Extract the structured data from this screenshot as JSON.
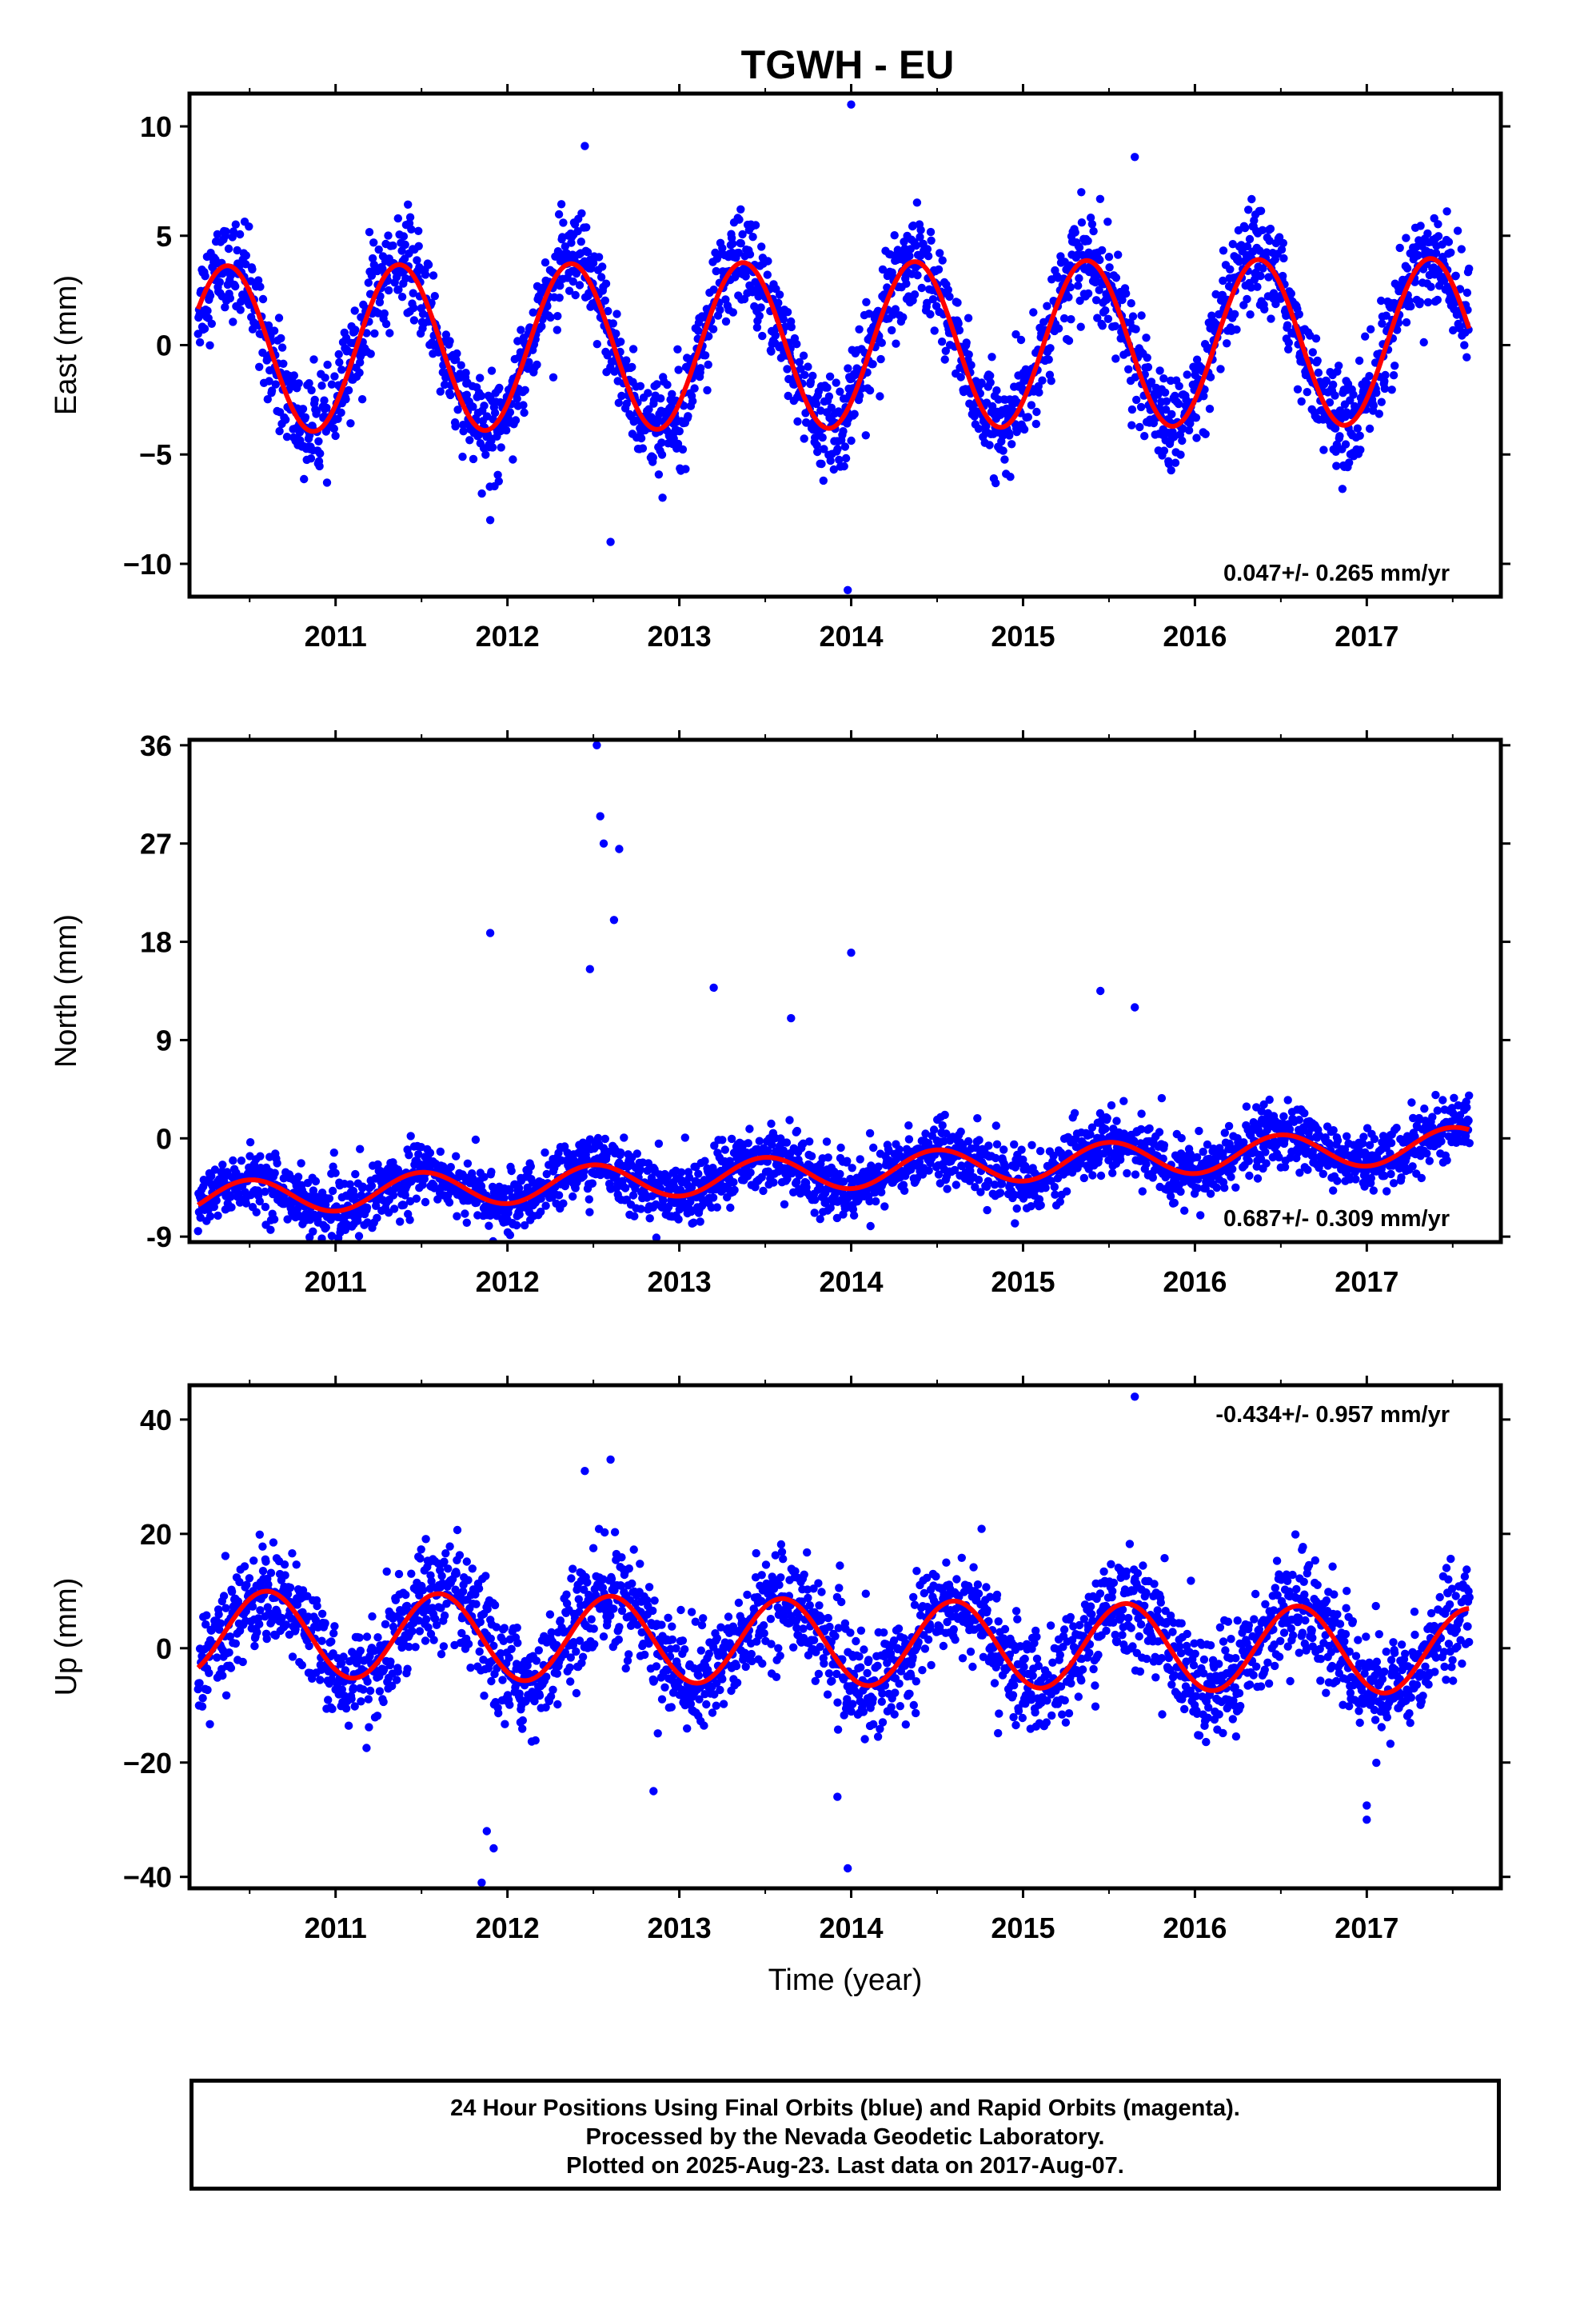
{
  "title": "TGWH - EU",
  "x_axis_label": "Time (year)",
  "caption": {
    "line1": "24 Hour Positions Using Final Orbits (blue) and Rapid Orbits (magenta).",
    "line2": "Processed by the Nevada Geodetic Laboratory.",
    "line3": "Plotted on 2025-Aug-23. Last data on 2017-Aug-07."
  },
  "colors": {
    "points": "#0000ff",
    "fit": "#ff0000",
    "axes": "#000000",
    "background": "#ffffff"
  },
  "chart_data": [
    {
      "type": "scatter",
      "ylabel": "East (mm)",
      "rate_text": "0.047+/- 0.265 mm/yr",
      "rate_position": "bottom-right",
      "xlim": [
        2010.15,
        2017.78
      ],
      "ylim": [
        -11.5,
        11.5
      ],
      "yticks": [
        -10,
        -5,
        0,
        5,
        10
      ],
      "ytick_labels": [
        "−10",
        "−5",
        "0",
        "5",
        "10"
      ],
      "xticks": [
        2011,
        2012,
        2013,
        2014,
        2015,
        2016,
        2017
      ],
      "xtick_labels": [
        "2011",
        "2012",
        "2013",
        "2014",
        "2015",
        "2016",
        "2017"
      ],
      "data_range": [
        2010.2,
        2017.6
      ],
      "series": [
        {
          "kind": "points",
          "model": {
            "offset": 0.0,
            "trend": 0.047,
            "annual_amp": 3.8,
            "annual_phase_peak": 0.37,
            "scatter_sd": 1.1
          },
          "outliers": [
            [
              2014.0,
              11.0
            ],
            [
              2013.98,
              -11.2
            ],
            [
              2012.6,
              -9.0
            ],
            [
              2015.65,
              8.6
            ],
            [
              2012.45,
              9.1
            ],
            [
              2011.9,
              -8.0
            ]
          ]
        },
        {
          "kind": "fit",
          "model": {
            "offset": 0.0,
            "trend": 0.047,
            "annual_amp": 3.8,
            "annual_phase_peak": 0.37
          }
        }
      ]
    },
    {
      "type": "scatter",
      "ylabel": "North (mm)",
      "rate_text": "0.687+/- 0.309 mm/yr",
      "rate_position": "bottom-right",
      "xlim": [
        2010.15,
        2017.78
      ],
      "ylim": [
        -9.5,
        36.5
      ],
      "yticks": [
        -9,
        0,
        9,
        18,
        27,
        36
      ],
      "ytick_labels": [
        "-9",
        "0",
        "9",
        "18",
        "27",
        "36"
      ],
      "xticks": [
        2011,
        2012,
        2013,
        2014,
        2015,
        2016,
        2017
      ],
      "xtick_labels": [
        "2011",
        "2012",
        "2013",
        "2014",
        "2015",
        "2016",
        "2017"
      ],
      "data_range": [
        2010.2,
        2017.6
      ],
      "series": [
        {
          "kind": "points",
          "model": {
            "offset": -3.0,
            "trend": 0.687,
            "annual_amp": 1.6,
            "annual_phase_peak": 0.5,
            "scatter_sd": 1.4
          },
          "outliers": [
            [
              2012.52,
              36.0
            ],
            [
              2012.54,
              29.5
            ],
            [
              2012.56,
              27.0
            ],
            [
              2012.62,
              20.0
            ],
            [
              2012.65,
              26.5
            ],
            [
              2011.9,
              18.8
            ],
            [
              2014.0,
              17.0
            ],
            [
              2012.48,
              15.5
            ],
            [
              2015.45,
              13.5
            ],
            [
              2013.2,
              13.8
            ],
            [
              2013.65,
              11.0
            ],
            [
              2015.65,
              12.0
            ]
          ]
        },
        {
          "kind": "fit",
          "model": {
            "offset": -3.0,
            "trend": 0.687,
            "annual_amp": 1.6,
            "annual_phase_peak": 0.5
          }
        }
      ]
    },
    {
      "type": "scatter",
      "ylabel": "Up (mm)",
      "rate_text": "-0.434+/- 0.957 mm/yr",
      "rate_position": "top-right",
      "xlim": [
        2010.15,
        2017.78
      ],
      "ylim": [
        -42,
        46
      ],
      "yticks": [
        -40,
        -20,
        0,
        20,
        40
      ],
      "ytick_labels": [
        "−40",
        "−20",
        "0",
        "20",
        "40"
      ],
      "xticks": [
        2011,
        2012,
        2013,
        2014,
        2015,
        2016,
        2017
      ],
      "xtick_labels": [
        "2011",
        "2012",
        "2013",
        "2014",
        "2015",
        "2016",
        "2017"
      ],
      "data_range": [
        2010.2,
        2017.6
      ],
      "series": [
        {
          "kind": "points",
          "model": {
            "offset": 1.0,
            "trend": -0.434,
            "annual_amp": 7.5,
            "annual_phase_peak": 0.6,
            "scatter_sd": 4.5
          },
          "outliers": [
            [
              2015.65,
              44.0
            ],
            [
              2011.85,
              -41.0
            ],
            [
              2011.88,
              -32.0
            ],
            [
              2011.92,
              -35.0
            ],
            [
              2013.98,
              -38.5
            ],
            [
              2013.92,
              -26.0
            ],
            [
              2012.6,
              33.0
            ],
            [
              2012.45,
              31.0
            ],
            [
              2017.0,
              -30.0
            ],
            [
              2017.0,
              -27.5
            ],
            [
              2012.85,
              -25.0
            ]
          ]
        },
        {
          "kind": "fit",
          "model": {
            "offset": 1.0,
            "trend": -0.434,
            "annual_amp": 7.5,
            "annual_phase_peak": 0.6
          }
        }
      ]
    }
  ]
}
